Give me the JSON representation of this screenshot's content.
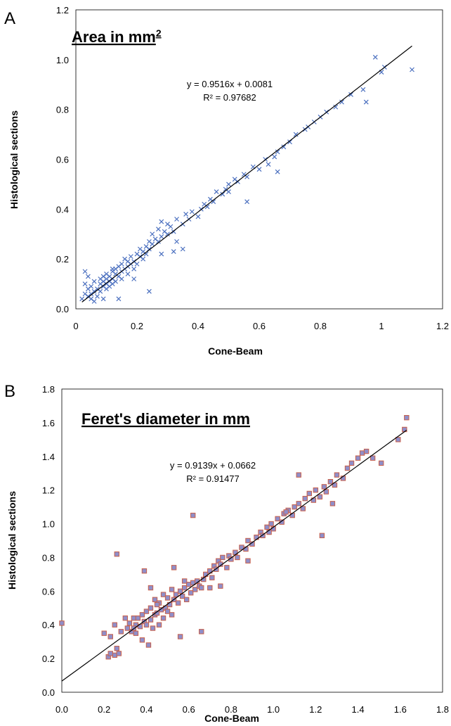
{
  "chart_data": [
    {
      "panel_label": "A",
      "type": "scatter",
      "title": "Area in mm",
      "title_superscript": "2",
      "xlabel": "Cone-Beam",
      "ylabel": "Histological sections",
      "xlim": [
        0,
        1.2
      ],
      "ylim": [
        0,
        1.2
      ],
      "xticks": [
        "0",
        "0.2",
        "0.4",
        "0.6",
        "0.8",
        "1",
        "1.2"
      ],
      "yticks": [
        "0.0",
        "0.2",
        "0.4",
        "0.6",
        "0.8",
        "1.0",
        "1.2"
      ],
      "grid": false,
      "marker": "x",
      "marker_color": "#4a6fbf",
      "trendline": {
        "slope": 0.9516,
        "intercept": 0.0081,
        "x_range": [
          0.02,
          1.1
        ]
      },
      "equation": "y = 0.9516x + 0.0081",
      "r_squared": "R² = 0.97682",
      "series": [
        {
          "x": [
            0.02,
            0.03,
            0.03,
            0.04,
            0.04,
            0.05,
            0.05,
            0.05,
            0.06,
            0.06,
            0.07,
            0.07,
            0.08,
            0.08,
            0.08,
            0.09,
            0.09,
            0.09,
            0.1,
            0.1,
            0.1,
            0.1,
            0.11,
            0.11,
            0.11,
            0.12,
            0.12,
            0.12,
            0.13,
            0.13,
            0.13,
            0.14,
            0.14,
            0.15,
            0.15,
            0.15,
            0.16,
            0.16,
            0.17,
            0.17,
            0.17,
            0.18,
            0.18,
            0.19,
            0.19,
            0.2,
            0.2,
            0.21,
            0.21,
            0.22,
            0.22,
            0.23,
            0.23,
            0.24,
            0.24,
            0.25,
            0.25,
            0.26,
            0.27,
            0.27,
            0.28,
            0.28,
            0.29,
            0.3,
            0.3,
            0.31,
            0.32,
            0.33,
            0.33,
            0.35,
            0.36,
            0.37,
            0.38,
            0.4,
            0.41,
            0.42,
            0.43,
            0.44,
            0.45,
            0.46,
            0.48,
            0.49,
            0.5,
            0.5,
            0.52,
            0.53,
            0.55,
            0.56,
            0.58,
            0.6,
            0.62,
            0.63,
            0.65,
            0.66,
            0.68,
            0.7,
            0.72,
            0.75,
            0.78,
            0.8,
            0.82,
            0.85,
            0.87,
            0.9,
            0.94,
            0.95,
            0.98,
            1.0,
            1.01,
            1.1,
            0.04,
            0.06,
            0.09,
            0.14,
            0.24,
            0.32,
            0.35,
            0.56,
            0.66,
            0.76,
            0.03,
            0.12,
            0.19,
            0.28
          ],
          "y": [
            0.04,
            0.1,
            0.15,
            0.05,
            0.08,
            0.04,
            0.06,
            0.09,
            0.07,
            0.11,
            0.05,
            0.08,
            0.1,
            0.12,
            0.07,
            0.09,
            0.11,
            0.13,
            0.1,
            0.12,
            0.08,
            0.14,
            0.11,
            0.13,
            0.09,
            0.12,
            0.15,
            0.1,
            0.14,
            0.11,
            0.16,
            0.13,
            0.17,
            0.15,
            0.18,
            0.12,
            0.16,
            0.2,
            0.17,
            0.19,
            0.14,
            0.18,
            0.21,
            0.19,
            0.16,
            0.22,
            0.18,
            0.21,
            0.24,
            0.23,
            0.2,
            0.25,
            0.22,
            0.24,
            0.27,
            0.26,
            0.3,
            0.28,
            0.27,
            0.32,
            0.29,
            0.35,
            0.31,
            0.3,
            0.34,
            0.33,
            0.31,
            0.36,
            0.27,
            0.34,
            0.38,
            0.36,
            0.39,
            0.37,
            0.4,
            0.42,
            0.41,
            0.44,
            0.43,
            0.47,
            0.46,
            0.48,
            0.5,
            0.47,
            0.52,
            0.51,
            0.54,
            0.53,
            0.57,
            0.56,
            0.6,
            0.58,
            0.61,
            0.63,
            0.65,
            0.67,
            0.7,
            0.72,
            0.75,
            0.77,
            0.79,
            0.81,
            0.83,
            0.86,
            0.88,
            0.83,
            1.01,
            0.95,
            0.97,
            0.96,
            0.13,
            0.03,
            0.04,
            0.04,
            0.07,
            0.23,
            0.24,
            0.43,
            0.55,
            0.73,
            0.06,
            0.16,
            0.12,
            0.22
          ]
        }
      ]
    },
    {
      "panel_label": "B",
      "type": "scatter",
      "title": "Feret's diameter in mm",
      "xlabel": "Cone-Beam",
      "ylabel": "Histological sections",
      "xlim": [
        0,
        1.8
      ],
      "ylim": [
        0,
        1.8
      ],
      "xticks": [
        "0.0",
        "0.2",
        "0.4",
        "0.6",
        "0.8",
        "1.0",
        "1.2",
        "1.4",
        "1.6",
        "1.8"
      ],
      "yticks": [
        "0.0",
        "0.2",
        "0.4",
        "0.6",
        "0.8",
        "1.0",
        "1.2",
        "1.4",
        "1.6",
        "1.8"
      ],
      "grid": false,
      "marker": "square",
      "marker_fill": "#8f8ec9",
      "marker_edge": "#c9604a",
      "trendline": {
        "slope": 0.9139,
        "intercept": 0.0662,
        "x_range": [
          0,
          1.63
        ]
      },
      "equation": "y = 0.9139x + 0.0662",
      "r_squared": "R² = 0.91477",
      "series": [
        {
          "x": [
            0.0,
            0.2,
            0.22,
            0.23,
            0.25,
            0.26,
            0.27,
            0.28,
            0.3,
            0.31,
            0.32,
            0.33,
            0.34,
            0.35,
            0.35,
            0.36,
            0.37,
            0.38,
            0.38,
            0.39,
            0.4,
            0.4,
            0.41,
            0.42,
            0.42,
            0.43,
            0.44,
            0.44,
            0.45,
            0.46,
            0.46,
            0.47,
            0.48,
            0.48,
            0.49,
            0.5,
            0.5,
            0.51,
            0.52,
            0.52,
            0.53,
            0.54,
            0.55,
            0.56,
            0.57,
            0.58,
            0.59,
            0.6,
            0.61,
            0.62,
            0.63,
            0.64,
            0.65,
            0.66,
            0.67,
            0.68,
            0.7,
            0.71,
            0.72,
            0.73,
            0.74,
            0.75,
            0.76,
            0.78,
            0.79,
            0.8,
            0.82,
            0.83,
            0.85,
            0.87,
            0.88,
            0.9,
            0.92,
            0.94,
            0.95,
            0.97,
            0.99,
            1.0,
            1.02,
            1.04,
            1.05,
            1.07,
            1.09,
            1.1,
            1.12,
            1.14,
            1.15,
            1.17,
            1.19,
            1.2,
            1.22,
            1.24,
            1.25,
            1.27,
            1.29,
            1.3,
            1.33,
            1.35,
            1.37,
            1.4,
            1.42,
            1.44,
            1.47,
            1.51,
            1.59,
            1.62,
            1.63,
            0.26,
            0.53,
            0.56,
            0.39,
            0.42,
            0.66,
            0.23,
            0.25,
            0.62,
            0.75,
            0.98,
            1.23,
            1.12,
            1.28,
            0.45,
            0.7,
            0.88,
            1.06,
            0.34,
            0.58
          ],
          "y": [
            0.41,
            0.35,
            0.21,
            0.33,
            0.22,
            0.26,
            0.23,
            0.36,
            0.44,
            0.38,
            0.41,
            0.36,
            0.44,
            0.4,
            0.35,
            0.44,
            0.39,
            0.46,
            0.31,
            0.42,
            0.4,
            0.48,
            0.28,
            0.43,
            0.5,
            0.38,
            0.46,
            0.55,
            0.47,
            0.4,
            0.53,
            0.49,
            0.44,
            0.58,
            0.5,
            0.48,
            0.56,
            0.52,
            0.46,
            0.61,
            0.55,
            0.58,
            0.53,
            0.6,
            0.57,
            0.62,
            0.55,
            0.64,
            0.59,
            0.65,
            0.61,
            0.66,
            0.63,
            0.62,
            0.67,
            0.7,
            0.72,
            0.68,
            0.75,
            0.73,
            0.78,
            0.76,
            0.8,
            0.74,
            0.81,
            0.79,
            0.83,
            0.8,
            0.86,
            0.85,
            0.9,
            0.88,
            0.92,
            0.95,
            0.93,
            0.98,
            1.0,
            0.97,
            1.03,
            1.01,
            1.06,
            1.08,
            1.05,
            1.1,
            1.12,
            1.09,
            1.15,
            1.18,
            1.14,
            1.2,
            1.16,
            1.22,
            1.19,
            1.25,
            1.23,
            1.29,
            1.27,
            1.33,
            1.36,
            1.39,
            1.42,
            1.43,
            1.39,
            1.36,
            1.5,
            1.56,
            1.63,
            0.82,
            0.74,
            0.33,
            0.72,
            0.62,
            0.36,
            0.23,
            0.4,
            1.05,
            0.63,
            0.95,
            0.93,
            1.29,
            1.12,
            0.52,
            0.62,
            0.78,
            1.07,
            0.38,
            0.66
          ]
        }
      ]
    }
  ]
}
